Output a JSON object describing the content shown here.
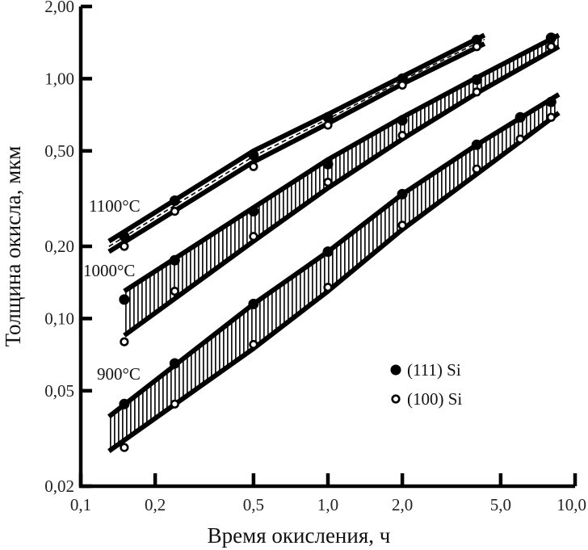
{
  "chart_data": {
    "type": "line",
    "xlabel": "Время окисления, ч",
    "ylabel": "Толщина окисла, мкм",
    "xscale": "log",
    "yscale": "log",
    "xlim": [
      0.1,
      10.0
    ],
    "ylim": [
      0.02,
      2.0
    ],
    "x_ticks": [
      {
        "value": 0.1,
        "label": "0,1"
      },
      {
        "value": 0.2,
        "label": "0,2"
      },
      {
        "value": 0.5,
        "label": "0,5"
      },
      {
        "value": 1.0,
        "label": "1,0"
      },
      {
        "value": 2.0,
        "label": "2,0"
      },
      {
        "value": 5.0,
        "label": "5,0"
      },
      {
        "value": 10.0,
        "label": "10,0"
      }
    ],
    "y_ticks": [
      {
        "value": 0.02,
        "label": "0,02"
      },
      {
        "value": 0.05,
        "label": "0,05"
      },
      {
        "value": 0.1,
        "label": "0,10"
      },
      {
        "value": 0.2,
        "label": "0,20"
      },
      {
        "value": 0.5,
        "label": "0,50"
      },
      {
        "value": 1.0,
        "label": "1,00"
      },
      {
        "value": 2.0,
        "label": "2,00"
      }
    ],
    "grid": false,
    "legend": {
      "position": "right-middle",
      "entries": [
        {
          "label": "(111) Si",
          "marker": "filled-circle"
        },
        {
          "label": "(100) Si",
          "marker": "open-circle"
        }
      ]
    },
    "groups": [
      {
        "label": "1100°C",
        "series": [
          {
            "name": "(111) Si",
            "marker": "filled-circle",
            "x": [
              0.15,
              0.24,
              0.5,
              1.0,
              2.0,
              4.0,
              8.0
            ],
            "y": [
              0.22,
              0.31,
              0.48,
              0.69,
              1.0,
              1.45,
              1.48
            ]
          },
          {
            "name": "(100) Si",
            "marker": "open-circle",
            "x": [
              0.15,
              0.24,
              0.5,
              1.0,
              2.0,
              4.0,
              8.0
            ],
            "y": [
              0.2,
              0.28,
              0.43,
              0.64,
              0.94,
              1.36,
              1.36
            ]
          }
        ],
        "band": {
          "x": [
            0.13,
            0.5,
            1.0,
            2.0,
            4.3
          ],
          "upper": [
            0.21,
            0.5,
            0.71,
            1.02,
            1.52
          ],
          "lower": [
            0.19,
            0.45,
            0.65,
            0.95,
            1.4
          ],
          "hatch": "dashed-center"
        }
      },
      {
        "label": "1000°C",
        "series": [
          {
            "name": "(111) Si",
            "marker": "filled-circle",
            "x": [
              0.15,
              0.24,
              0.5,
              1.0,
              2.0,
              4.0,
              8.0
            ],
            "y": [
              0.12,
              0.175,
              0.28,
              0.44,
              0.67,
              0.99,
              1.48
            ]
          },
          {
            "name": "(100) Si",
            "marker": "open-circle",
            "x": [
              0.15,
              0.24,
              0.5,
              1.0,
              2.0,
              4.0,
              8.0
            ],
            "y": [
              0.08,
              0.13,
              0.22,
              0.37,
              0.58,
              0.88,
              1.36
            ]
          }
        ],
        "band": {
          "x": [
            0.15,
            0.5,
            1.0,
            2.0,
            4.0,
            8.6
          ],
          "upper": [
            0.13,
            0.29,
            0.46,
            0.69,
            1.01,
            1.52
          ],
          "lower": [
            0.085,
            0.21,
            0.35,
            0.56,
            0.87,
            1.36
          ],
          "hatch": "vertical"
        }
      },
      {
        "label": "900°C",
        "series": [
          {
            "name": "(111) Si",
            "marker": "filled-circle",
            "x": [
              0.15,
              0.24,
              0.5,
              1.0,
              2.0,
              4.0,
              6.0,
              8.0
            ],
            "y": [
              0.044,
              0.065,
              0.115,
              0.19,
              0.33,
              0.53,
              0.69,
              0.8
            ]
          },
          {
            "name": "(100) Si",
            "marker": "open-circle",
            "x": [
              0.15,
              0.24,
              0.5,
              1.0,
              2.0,
              4.0,
              6.0,
              8.0
            ],
            "y": [
              0.029,
              0.044,
              0.078,
              0.135,
              0.245,
              0.42,
              0.56,
              0.69
            ]
          }
        ],
        "band": {
          "x": [
            0.13,
            0.5,
            1.0,
            2.0,
            4.0,
            8.6
          ],
          "upper": [
            0.039,
            0.115,
            0.19,
            0.33,
            0.53,
            0.86
          ],
          "lower": [
            0.028,
            0.075,
            0.13,
            0.235,
            0.4,
            0.72
          ],
          "hatch": "vertical"
        }
      }
    ]
  }
}
